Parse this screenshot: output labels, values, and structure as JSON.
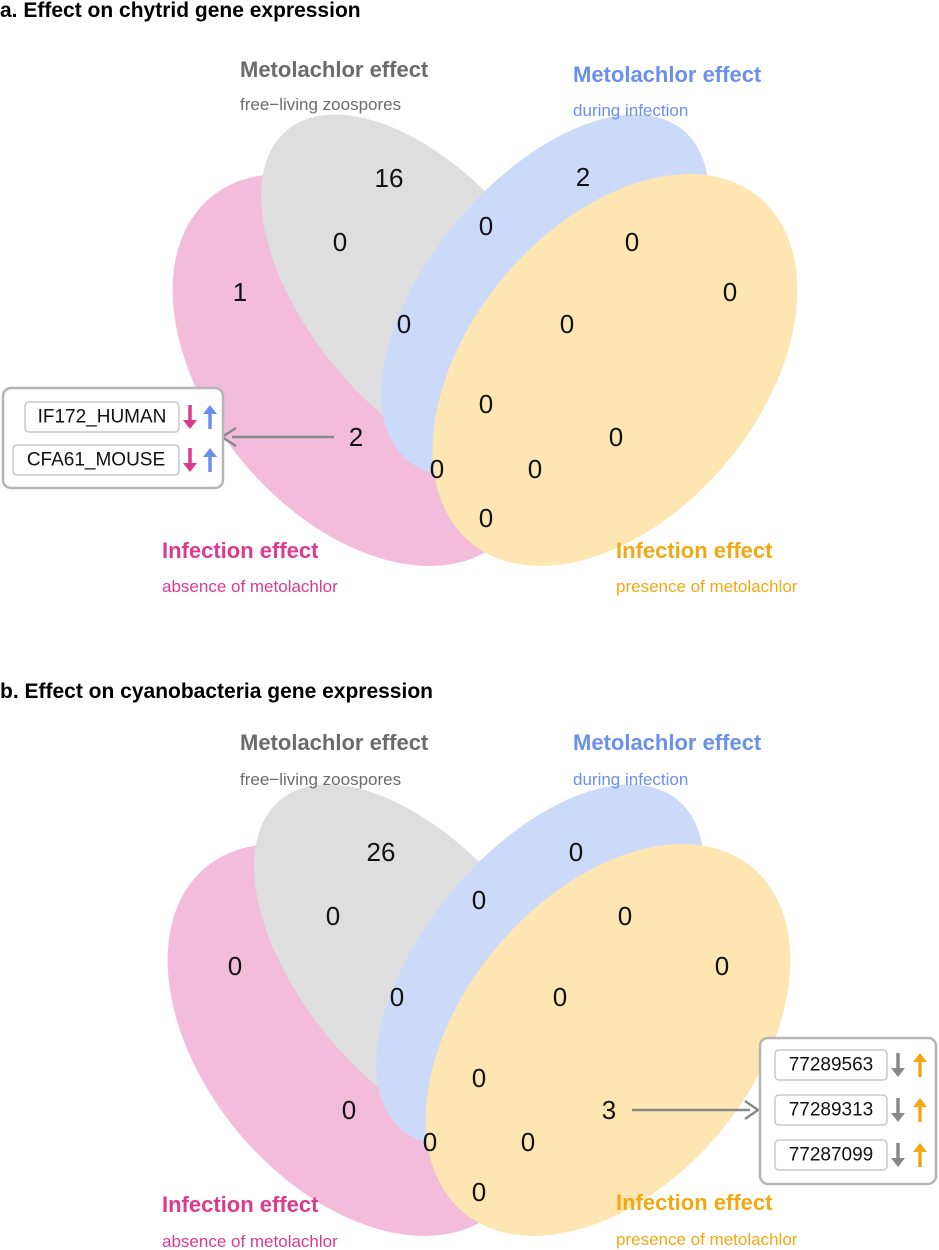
{
  "colors": {
    "pink": "#de3a8c",
    "grey": "#6b6b6b",
    "blue": "#6a90ee",
    "orange": "#f2a812",
    "pink_fill": "#eb8cc0",
    "grey_fill": "#c8c8c8",
    "blue_fill": "#a8c0f6",
    "orange_fill": "#fcd57c",
    "arrow_grey": "#888888"
  },
  "panel_a": {
    "title": "a. Effect on chytrid gene expression",
    "sets": {
      "grey": {
        "title": "Metolachlor effect",
        "subtitle": "free−living zoospores"
      },
      "blue": {
        "title": "Metolachlor effect",
        "subtitle": "during infection"
      },
      "pink": {
        "title": "Infection effect",
        "subtitle": "absence of metolachlor"
      },
      "orange": {
        "title": "Infection effect",
        "subtitle": "presence of metolachlor"
      }
    },
    "counts": {
      "pink_only": "1",
      "grey_only": "16",
      "blue_only": "2",
      "orange_only": "0",
      "pink_grey": "0",
      "grey_blue": "0",
      "blue_orange": "0",
      "pink_grey_blue": "0",
      "grey_blue_orange": "0",
      "all_four": "0",
      "pink_blue": "2",
      "grey_orange": "0",
      "pink_blue_orange": "0",
      "pink_grey_orange": "0",
      "pink_orange": "0"
    },
    "callout": {
      "genes": [
        {
          "name": "IF172_HUMAN",
          "arrows": [
            {
              "dir": "down",
              "color": "pink"
            },
            {
              "dir": "up",
              "color": "blue"
            }
          ]
        },
        {
          "name": "CFA61_MOUSE",
          "arrows": [
            {
              "dir": "down",
              "color": "pink"
            },
            {
              "dir": "up",
              "color": "blue"
            }
          ]
        }
      ]
    }
  },
  "panel_b": {
    "title": "b. Effect on cyanobacteria gene expression",
    "sets": {
      "grey": {
        "title": "Metolachlor effect",
        "subtitle": "free−living zoospores"
      },
      "blue": {
        "title": "Metolachlor effect",
        "subtitle": "during infection"
      },
      "pink": {
        "title": "Infection effect",
        "subtitle": "absence of metolachlor"
      },
      "orange": {
        "title": "Infection effect",
        "subtitle": "presence of metolachlor"
      }
    },
    "counts": {
      "pink_only": "0",
      "grey_only": "26",
      "blue_only": "0",
      "orange_only": "0",
      "pink_grey": "0",
      "grey_blue": "0",
      "blue_orange": "0",
      "pink_grey_blue": "0",
      "grey_blue_orange": "0",
      "all_four": "0",
      "pink_blue": "0",
      "grey_orange": "3",
      "pink_blue_orange": "0",
      "pink_grey_orange": "0",
      "pink_orange": "0"
    },
    "callout": {
      "genes": [
        {
          "name": "77289563",
          "arrows": [
            {
              "dir": "down",
              "color": "grey"
            },
            {
              "dir": "up",
              "color": "orange"
            }
          ]
        },
        {
          "name": "77289313",
          "arrows": [
            {
              "dir": "down",
              "color": "grey"
            },
            {
              "dir": "up",
              "color": "orange"
            }
          ]
        },
        {
          "name": "77287099",
          "arrows": [
            {
              "dir": "down",
              "color": "grey"
            },
            {
              "dir": "up",
              "color": "orange"
            }
          ]
        }
      ]
    }
  }
}
